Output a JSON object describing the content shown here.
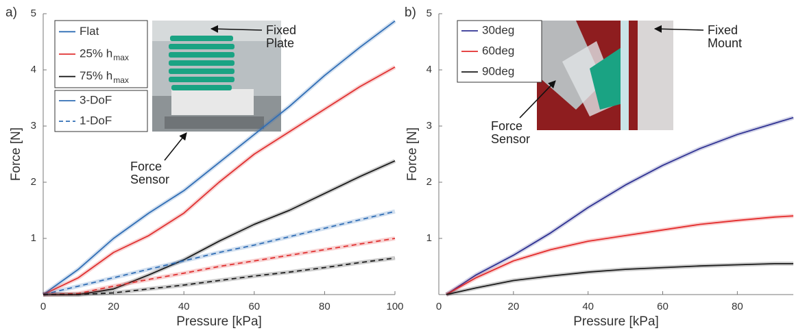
{
  "chart_data": [
    {
      "type": "line",
      "panel_label": "a)",
      "xlabel": "Pressure [kPa]",
      "ylabel": "Force [N]",
      "xlim": [
        0,
        100
      ],
      "ylim": [
        0,
        5
      ],
      "xticks": [
        0,
        20,
        40,
        60,
        80,
        100
      ],
      "yticks": [
        1,
        2,
        3,
        4,
        5
      ],
      "x": [
        0,
        10,
        20,
        30,
        40,
        50,
        60,
        70,
        80,
        90,
        100
      ],
      "series": [
        {
          "color": "#2f6db5",
          "dashed": false,
          "values": [
            0,
            0.45,
            1.0,
            1.45,
            1.85,
            2.35,
            2.85,
            3.35,
            3.9,
            4.4,
            4.87
          ]
        },
        {
          "color": "#e03030",
          "dashed": false,
          "values": [
            0,
            0.3,
            0.75,
            1.05,
            1.45,
            2.0,
            2.5,
            2.9,
            3.3,
            3.7,
            4.05
          ]
        },
        {
          "color": "#1a1a1a",
          "dashed": false,
          "values": [
            0,
            0,
            0.1,
            0.35,
            0.62,
            0.95,
            1.25,
            1.5,
            1.8,
            2.1,
            2.38
          ]
        },
        {
          "color": "#2f6db5",
          "dashed": true,
          "values": [
            0,
            0.15,
            0.3,
            0.45,
            0.6,
            0.75,
            0.88,
            1.03,
            1.18,
            1.33,
            1.48
          ]
        },
        {
          "color": "#e03030",
          "dashed": true,
          "values": [
            0,
            0.02,
            0.15,
            0.27,
            0.38,
            0.5,
            0.6,
            0.7,
            0.8,
            0.9,
            1.0
          ]
        },
        {
          "color": "#1a1a1a",
          "dashed": true,
          "values": [
            0,
            0,
            0.03,
            0.1,
            0.17,
            0.25,
            0.33,
            0.4,
            0.48,
            0.57,
            0.65
          ]
        }
      ],
      "legend_groups": [
        {
          "entries": [
            {
              "label": "Flat",
              "color": "#2f6db5",
              "dashed": false
            },
            {
              "label": "25% h",
              "subscript": "max",
              "color": "#e03030",
              "dashed": false
            },
            {
              "label": "75% h",
              "subscript": "max",
              "color": "#1a1a1a",
              "dashed": false
            }
          ]
        },
        {
          "entries": [
            {
              "label": "3-DoF",
              "color": "#2f6db5",
              "dashed": false
            },
            {
              "label": "1-DoF",
              "color": "#2f6db5",
              "dashed": true
            }
          ]
        }
      ],
      "annotations": [
        {
          "lines": [
            "Fixed",
            "Plate"
          ]
        },
        {
          "lines": [
            "Force",
            "Sensor"
          ]
        }
      ]
    },
    {
      "type": "line",
      "panel_label": "b)",
      "xlabel": "Pressure [kPa]",
      "ylabel": "Force [N]",
      "xlim": [
        0,
        95
      ],
      "ylim": [
        0,
        5
      ],
      "xticks": [
        0,
        20,
        40,
        60,
        80
      ],
      "yticks": [
        1,
        2,
        3,
        4,
        5
      ],
      "x": [
        2,
        10,
        20,
        30,
        40,
        50,
        60,
        70,
        80,
        90,
        95
      ],
      "series": [
        {
          "name": "30deg",
          "color": "#2e3192",
          "dashed": false,
          "values": [
            0,
            0.35,
            0.7,
            1.1,
            1.55,
            1.95,
            2.3,
            2.6,
            2.85,
            3.05,
            3.15
          ]
        },
        {
          "name": "60deg",
          "color": "#e32b2b",
          "dashed": false,
          "values": [
            0,
            0.3,
            0.6,
            0.8,
            0.95,
            1.05,
            1.15,
            1.25,
            1.32,
            1.38,
            1.4
          ]
        },
        {
          "name": "90deg",
          "color": "#1a1a1a",
          "dashed": false,
          "values": [
            0,
            0.12,
            0.25,
            0.33,
            0.4,
            0.45,
            0.48,
            0.51,
            0.53,
            0.55,
            0.55
          ]
        }
      ],
      "annotations": [
        {
          "lines": [
            "Fixed",
            "Mount"
          ]
        },
        {
          "lines": [
            "Force",
            "Sensor"
          ]
        }
      ]
    }
  ]
}
